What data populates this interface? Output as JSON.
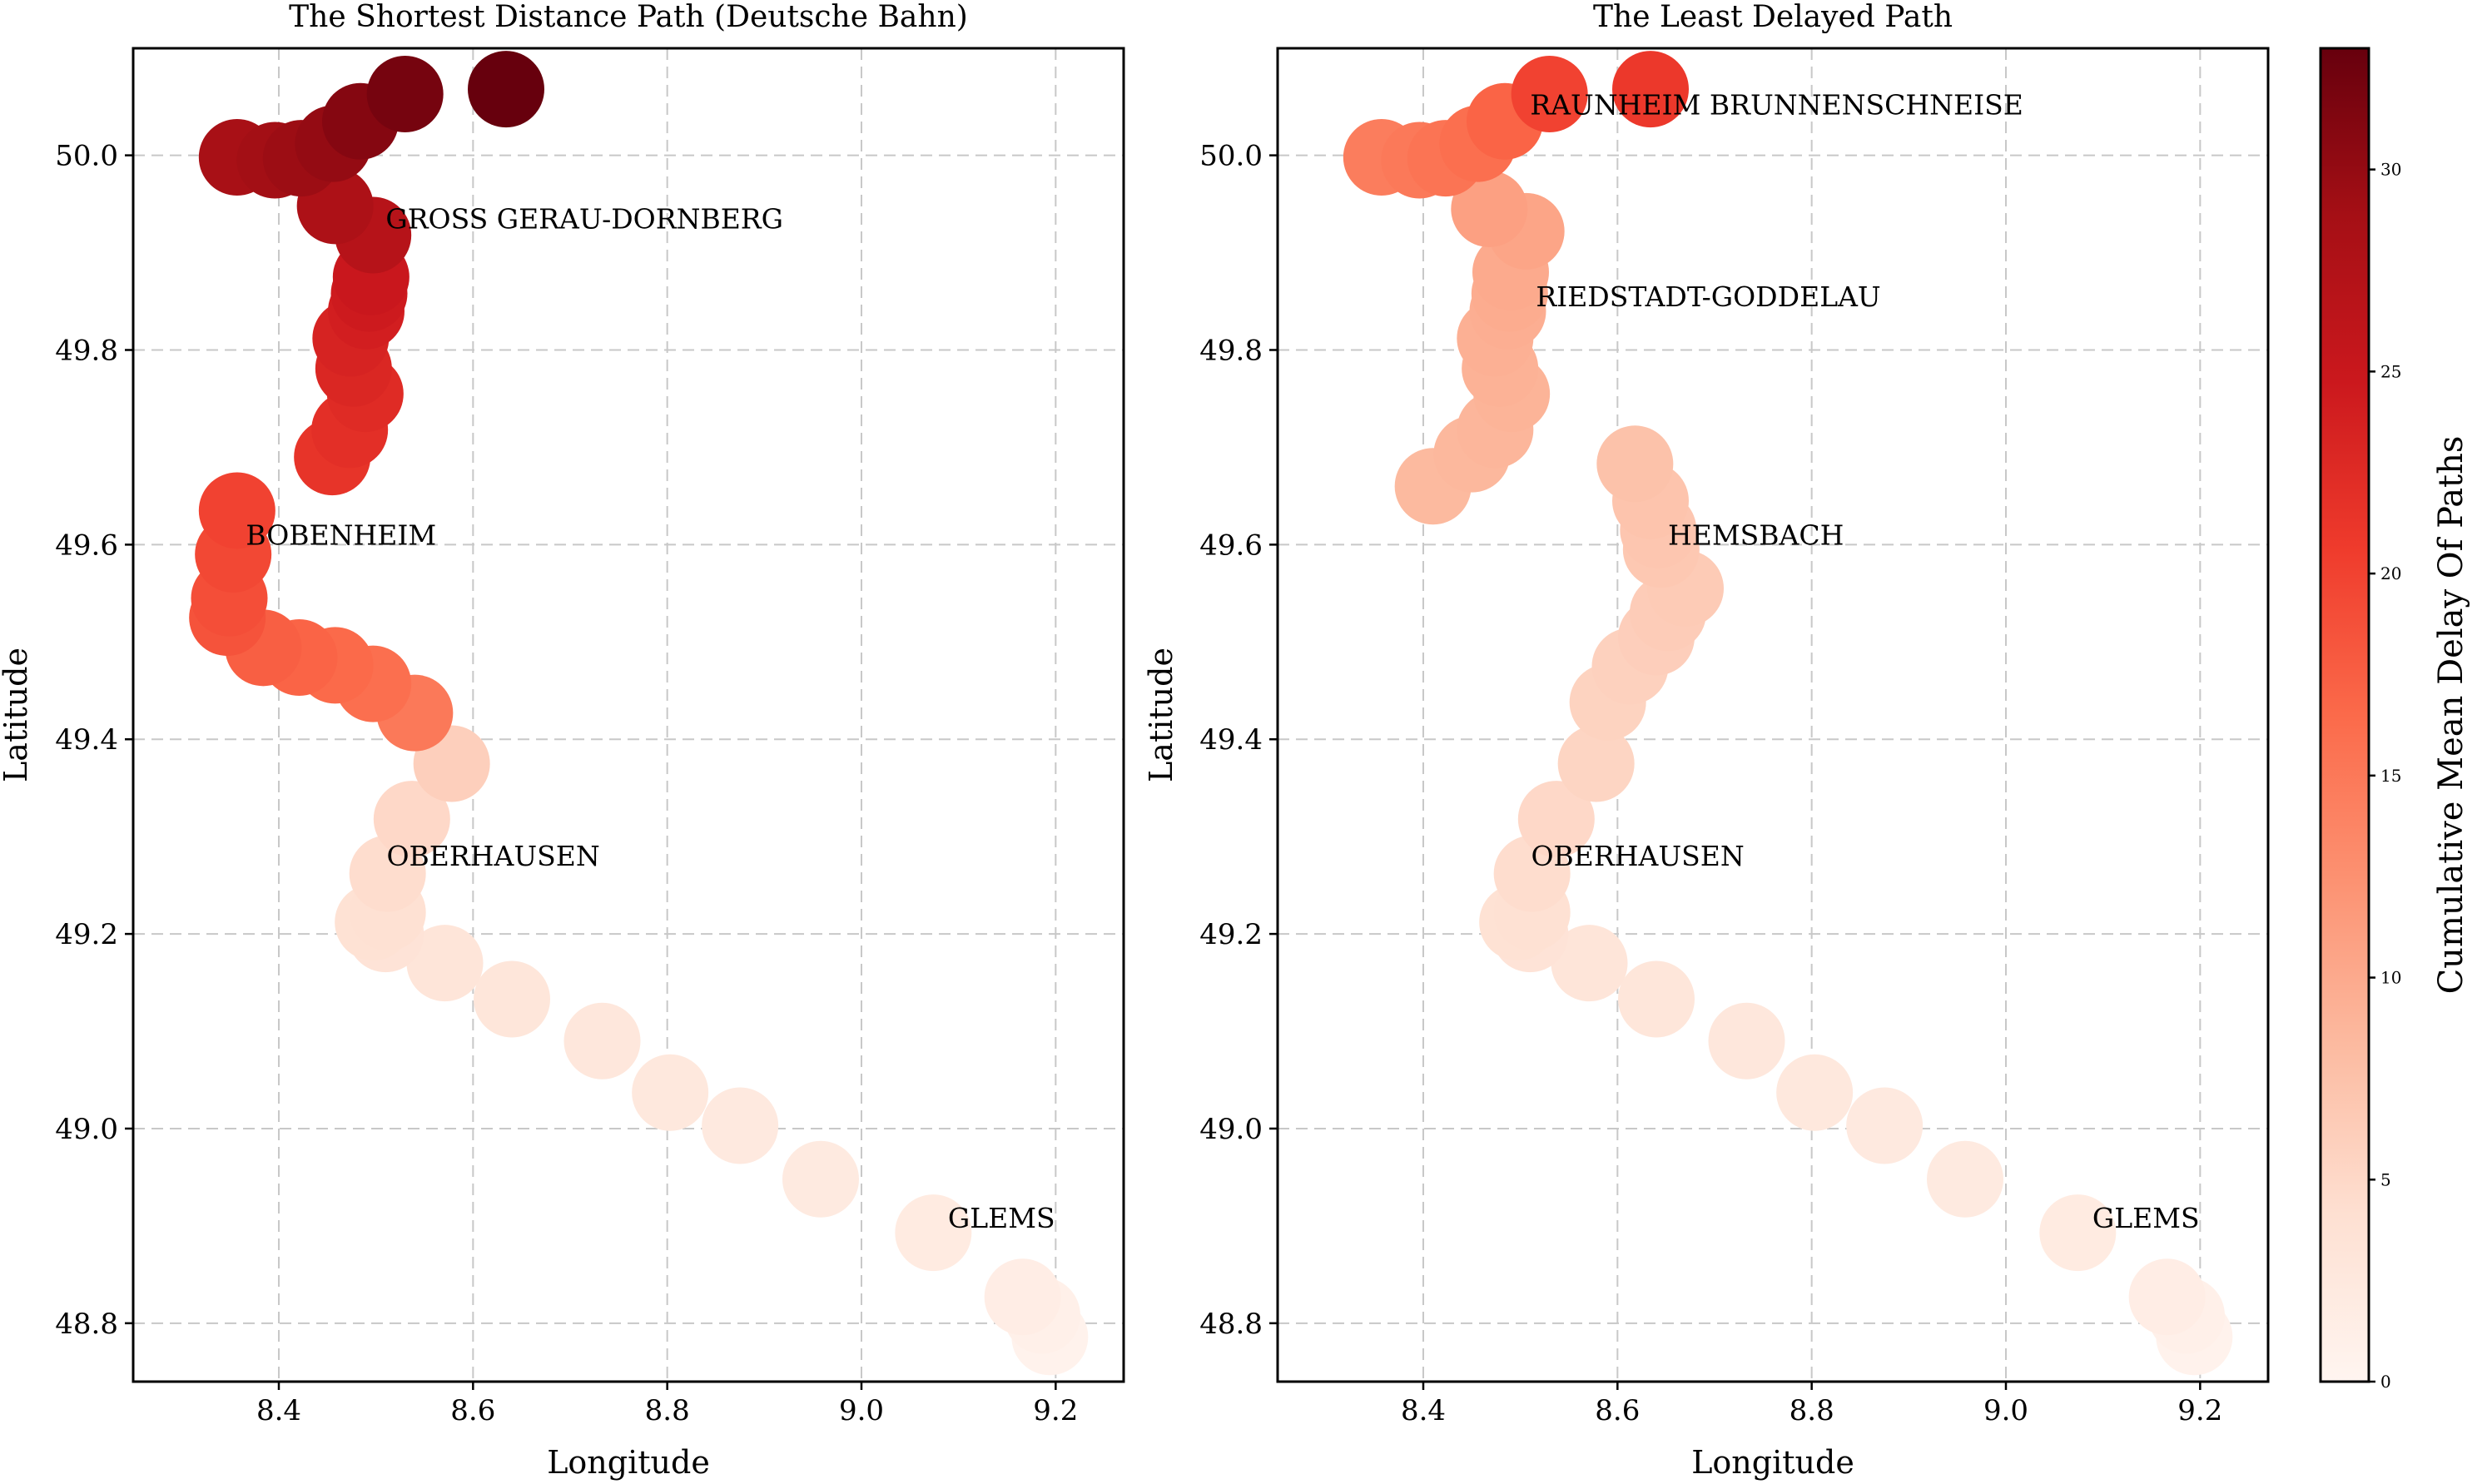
{
  "chart_data": [
    {
      "type": "scatter",
      "title": "The Shortest Distance Path (Deutsche Bahn)",
      "xlabel": "Longitude",
      "ylabel": "Latitude",
      "xlim": [
        8.25,
        9.27
      ],
      "ylim": [
        48.74,
        50.11
      ],
      "xticks": [
        8.4,
        8.6,
        8.8,
        9.0,
        9.2
      ],
      "yticks": [
        48.8,
        49.0,
        49.2,
        49.4,
        49.6,
        49.8,
        50.0
      ],
      "grid": true,
      "points": [
        {
          "x": 8.634,
          "y": 50.068,
          "delay": 33
        },
        {
          "x": 8.53,
          "y": 50.063,
          "delay": 32
        },
        {
          "x": 8.484,
          "y": 50.035,
          "delay": 31
        },
        {
          "x": 8.456,
          "y": 50.012,
          "delay": 30
        },
        {
          "x": 8.423,
          "y": 49.997,
          "delay": 29.5
        },
        {
          "x": 8.396,
          "y": 49.995,
          "delay": 29
        },
        {
          "x": 8.357,
          "y": 49.998,
          "delay": 28.5
        },
        {
          "x": 8.458,
          "y": 49.948,
          "delay": 28
        },
        {
          "x": 8.497,
          "y": 49.918,
          "delay": 27
        },
        {
          "x": 8.495,
          "y": 49.875,
          "delay": 25
        },
        {
          "x": 8.493,
          "y": 49.858,
          "delay": 24.5
        },
        {
          "x": 8.49,
          "y": 49.84,
          "delay": 24
        },
        {
          "x": 8.474,
          "y": 49.812,
          "delay": 23.5
        },
        {
          "x": 8.477,
          "y": 49.781,
          "delay": 23
        },
        {
          "x": 8.489,
          "y": 49.755,
          "delay": 22.5
        },
        {
          "x": 8.473,
          "y": 49.718,
          "delay": 22
        },
        {
          "x": 8.455,
          "y": 49.69,
          "delay": 21.5
        },
        {
          "x": 8.357,
          "y": 49.635,
          "delay": 20
        },
        {
          "x": 8.353,
          "y": 49.59,
          "delay": 19.5
        },
        {
          "x": 8.349,
          "y": 49.545,
          "delay": 19
        },
        {
          "x": 8.347,
          "y": 49.525,
          "delay": 18.5
        },
        {
          "x": 8.384,
          "y": 49.494,
          "delay": 17.5
        },
        {
          "x": 8.421,
          "y": 49.484,
          "delay": 17
        },
        {
          "x": 8.458,
          "y": 49.476,
          "delay": 16.5
        },
        {
          "x": 8.497,
          "y": 49.457,
          "delay": 16
        },
        {
          "x": 8.54,
          "y": 49.427,
          "delay": 15
        },
        {
          "x": 8.578,
          "y": 49.375,
          "delay": 6
        },
        {
          "x": 8.537,
          "y": 49.318,
          "delay": 5
        },
        {
          "x": 8.512,
          "y": 49.262,
          "delay": 4.5
        },
        {
          "x": 8.512,
          "y": 49.222,
          "delay": 4
        },
        {
          "x": 8.497,
          "y": 49.212,
          "delay": 3.8
        },
        {
          "x": 8.51,
          "y": 49.2,
          "delay": 3.5
        },
        {
          "x": 8.571,
          "y": 49.17,
          "delay": 3.2
        },
        {
          "x": 8.64,
          "y": 49.133,
          "delay": 3
        },
        {
          "x": 8.733,
          "y": 49.09,
          "delay": 2.8
        },
        {
          "x": 8.803,
          "y": 49.037,
          "delay": 2.6
        },
        {
          "x": 8.875,
          "y": 49.003,
          "delay": 2.4
        },
        {
          "x": 8.958,
          "y": 48.948,
          "delay": 2.2
        },
        {
          "x": 9.074,
          "y": 48.893,
          "delay": 2
        },
        {
          "x": 9.166,
          "y": 48.827,
          "delay": 1.5
        },
        {
          "x": 9.186,
          "y": 48.808,
          "delay": 1
        },
        {
          "x": 9.194,
          "y": 48.786,
          "delay": 0.5
        }
      ],
      "annotations": [
        {
          "text": "GROSS GERAU-DORNBERG",
          "x": 8.51,
          "y": 49.925
        },
        {
          "text": "BOBENHEIM",
          "x": 8.366,
          "y": 49.6
        },
        {
          "text": "OBERHAUSEN",
          "x": 8.511,
          "y": 49.27
        },
        {
          "text": "GLEMS",
          "x": 9.089,
          "y": 48.898
        }
      ]
    },
    {
      "type": "scatter",
      "title": "The Least Delayed Path",
      "xlabel": "Longitude",
      "ylabel": "Latitude",
      "xlim": [
        8.25,
        9.27
      ],
      "ylim": [
        48.74,
        50.11
      ],
      "xticks": [
        8.4,
        8.6,
        8.8,
        9.0,
        9.2
      ],
      "yticks": [
        48.8,
        49.0,
        49.2,
        49.4,
        49.6,
        49.8,
        50.0
      ],
      "grid": true,
      "points": [
        {
          "x": 8.634,
          "y": 50.068,
          "delay": 21
        },
        {
          "x": 8.53,
          "y": 50.063,
          "delay": 20
        },
        {
          "x": 8.484,
          "y": 50.035,
          "delay": 17
        },
        {
          "x": 8.456,
          "y": 50.012,
          "delay": 16
        },
        {
          "x": 8.423,
          "y": 49.997,
          "delay": 15.5
        },
        {
          "x": 8.396,
          "y": 49.995,
          "delay": 15
        },
        {
          "x": 8.357,
          "y": 49.998,
          "delay": 14.5
        },
        {
          "x": 8.468,
          "y": 49.945,
          "delay": 11
        },
        {
          "x": 8.506,
          "y": 49.922,
          "delay": 10.5
        },
        {
          "x": 8.49,
          "y": 49.88,
          "delay": 10
        },
        {
          "x": 8.489,
          "y": 49.858,
          "delay": 9.8
        },
        {
          "x": 8.487,
          "y": 49.84,
          "delay": 9.6
        },
        {
          "x": 8.474,
          "y": 49.812,
          "delay": 9.4
        },
        {
          "x": 8.479,
          "y": 49.781,
          "delay": 9.2
        },
        {
          "x": 8.491,
          "y": 49.755,
          "delay": 9
        },
        {
          "x": 8.474,
          "y": 49.718,
          "delay": 8.8
        },
        {
          "x": 8.45,
          "y": 49.693,
          "delay": 8.6
        },
        {
          "x": 8.41,
          "y": 49.66,
          "delay": 8.4
        },
        {
          "x": 8.618,
          "y": 49.683,
          "delay": 7.5
        },
        {
          "x": 8.634,
          "y": 49.645,
          "delay": 7.2
        },
        {
          "x": 8.642,
          "y": 49.615,
          "delay": 7
        },
        {
          "x": 8.645,
          "y": 49.595,
          "delay": 6.8
        },
        {
          "x": 8.67,
          "y": 49.555,
          "delay": 6.5
        },
        {
          "x": 8.652,
          "y": 49.53,
          "delay": 6.3
        },
        {
          "x": 8.64,
          "y": 49.505,
          "delay": 6.1
        },
        {
          "x": 8.613,
          "y": 49.475,
          "delay": 5.8
        },
        {
          "x": 8.59,
          "y": 49.438,
          "delay": 5.6
        },
        {
          "x": 8.578,
          "y": 49.375,
          "delay": 5.4
        },
        {
          "x": 8.537,
          "y": 49.318,
          "delay": 5
        },
        {
          "x": 8.512,
          "y": 49.262,
          "delay": 4.5
        },
        {
          "x": 8.512,
          "y": 49.222,
          "delay": 4
        },
        {
          "x": 8.497,
          "y": 49.212,
          "delay": 3.8
        },
        {
          "x": 8.51,
          "y": 49.2,
          "delay": 3.5
        },
        {
          "x": 8.571,
          "y": 49.17,
          "delay": 3.2
        },
        {
          "x": 8.64,
          "y": 49.133,
          "delay": 3
        },
        {
          "x": 8.733,
          "y": 49.09,
          "delay": 2.8
        },
        {
          "x": 8.803,
          "y": 49.037,
          "delay": 2.6
        },
        {
          "x": 8.875,
          "y": 49.003,
          "delay": 2.4
        },
        {
          "x": 8.958,
          "y": 48.948,
          "delay": 2.2
        },
        {
          "x": 9.074,
          "y": 48.893,
          "delay": 2
        },
        {
          "x": 9.166,
          "y": 48.827,
          "delay": 1.5
        },
        {
          "x": 9.186,
          "y": 48.808,
          "delay": 1
        },
        {
          "x": 9.194,
          "y": 48.786,
          "delay": 0.5
        }
      ],
      "annotations": [
        {
          "text": "RAUNHEIM BRUNNENSCHNEISE",
          "x": 8.51,
          "y": 50.042
        },
        {
          "text": "RIEDSTADT-GODDELAU",
          "x": 8.516,
          "y": 49.845
        },
        {
          "text": "HEMSBACH",
          "x": 8.652,
          "y": 49.6
        },
        {
          "text": "OBERHAUSEN",
          "x": 8.511,
          "y": 49.27
        },
        {
          "text": "GLEMS",
          "x": 9.089,
          "y": 48.898
        }
      ]
    }
  ],
  "colorbar": {
    "label": "Cumulative Mean Delay Of Paths",
    "range": [
      0,
      33
    ],
    "ticks": [
      0,
      5,
      10,
      15,
      20,
      25,
      30
    ],
    "colormap": "Reds",
    "colors": [
      "#fff5f0",
      "#fee0d2",
      "#fcbba1",
      "#fc9272",
      "#fb6a4a",
      "#ef3b2c",
      "#cb181d",
      "#a50f15",
      "#67000d"
    ]
  }
}
